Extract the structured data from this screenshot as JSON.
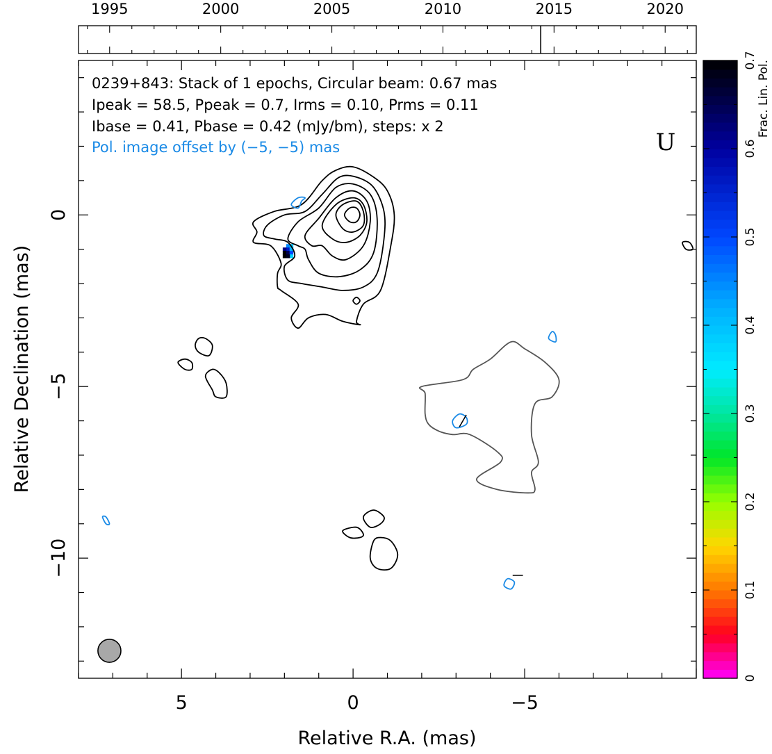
{
  "chart_data": {
    "type": "contour",
    "title_lines": [
      "0239+843: Stack of 1 epochs, Circular beam: 0.67 mas",
      "Ipeak = 58.5, Ppeak = 0.7, Irms = 0.10, Prms = 0.11",
      "Ibase = 0.41, Pbase = 0.42 (mJy/bm), steps: x 2"
    ],
    "offset_note": "Pol. image offset by (−5, −5) mas",
    "band_label": "U",
    "xlabel": "Relative R.A. (mas)",
    "ylabel": "Relative Declination (mas)",
    "xlim": [
      8,
      -10
    ],
    "ylim": [
      -13.5,
      4.5
    ],
    "x_ticks": [
      5,
      0,
      -5
    ],
    "x_tick_labels": [
      "5",
      "0",
      "−5"
    ],
    "y_ticks": [
      0,
      -5,
      -10
    ],
    "y_tick_labels": [
      "0",
      "−5",
      "−10"
    ],
    "timeline": {
      "xlim": [
        1993.6,
        2021.4
      ],
      "tick_years": [
        1995,
        2000,
        2005,
        2010,
        2015,
        2020
      ],
      "tick_labels": [
        "1995",
        "2000",
        "2005",
        "2010",
        "2015",
        "2020"
      ],
      "epochs": [
        2014.4
      ]
    },
    "colorbar": {
      "label": "Frac. Lin. Pol.",
      "range": [
        0,
        0.7
      ],
      "ticks": [
        0,
        0.1,
        0.2,
        0.3,
        0.4,
        0.5,
        0.6,
        0.7
      ],
      "tick_labels": [
        "0",
        "0.1",
        "0.2",
        "0.3",
        "0.4",
        "0.5",
        "0.6",
        "0.7"
      ]
    },
    "beam": {
      "x": 7.1,
      "y": -12.7,
      "diameter_mas": 0.67
    },
    "colors": {
      "total_intensity": "#000000",
      "negative_intensity": "#555555",
      "polarization": "#1a8ae6",
      "beam_fill": "#a8a8a8"
    },
    "stokes_i_contours": [
      {
        "level": 1,
        "points": [
          [
            2.9,
            -0.8
          ],
          [
            2.8,
            -0.5
          ],
          [
            2.9,
            -0.2
          ],
          [
            2.3,
            0.1
          ],
          [
            1.5,
            0.3
          ],
          [
            0.9,
            1.0
          ],
          [
            0.5,
            1.3
          ],
          [
            0.0,
            1.4
          ],
          [
            -0.6,
            1.1
          ],
          [
            -1.0,
            0.7
          ],
          [
            -1.2,
            0.0
          ],
          [
            -1.1,
            -0.9
          ],
          [
            -0.8,
            -2.2
          ],
          [
            -0.3,
            -2.6
          ],
          [
            -0.1,
            -3.1
          ],
          [
            -0.2,
            -3.2
          ],
          [
            0.3,
            -3.1
          ],
          [
            0.8,
            -2.9
          ],
          [
            1.3,
            -3.0
          ],
          [
            1.6,
            -3.3
          ],
          [
            1.8,
            -3.0
          ],
          [
            1.6,
            -2.6
          ],
          [
            2.1,
            -2.2
          ],
          [
            2.2,
            -2.1
          ],
          [
            2.2,
            -1.7
          ],
          [
            2.1,
            -1.4
          ],
          [
            2.4,
            -0.9
          ]
        ]
      },
      {
        "level": 2,
        "points": [
          [
            2.6,
            -0.6
          ],
          [
            2.5,
            -0.3
          ],
          [
            2.0,
            0.0
          ],
          [
            1.4,
            0.1
          ],
          [
            0.9,
            0.6
          ],
          [
            0.4,
            1.1
          ],
          [
            -0.1,
            1.1
          ],
          [
            -0.6,
            0.8
          ],
          [
            -0.9,
            0.1
          ],
          [
            -0.9,
            -0.7
          ],
          [
            -0.7,
            -1.7
          ],
          [
            -0.3,
            -2.1
          ],
          [
            0.3,
            -2.2
          ],
          [
            0.9,
            -2.1
          ],
          [
            1.5,
            -2.0
          ],
          [
            1.9,
            -1.9
          ],
          [
            2.0,
            -1.5
          ],
          [
            1.7,
            -1.2
          ],
          [
            1.9,
            -0.8
          ],
          [
            2.3,
            -0.7
          ]
        ]
      },
      {
        "level": 4,
        "points": [
          [
            1.9,
            -0.7
          ],
          [
            1.6,
            -0.2
          ],
          [
            1.0,
            0.2
          ],
          [
            0.5,
            0.8
          ],
          [
            0.0,
            0.9
          ],
          [
            -0.5,
            0.6
          ],
          [
            -0.7,
            -0.1
          ],
          [
            -0.6,
            -1.1
          ],
          [
            -0.2,
            -1.6
          ],
          [
            0.4,
            -1.8
          ],
          [
            1.0,
            -1.7
          ],
          [
            1.3,
            -1.3
          ],
          [
            1.4,
            -1.0
          ],
          [
            1.6,
            -0.9
          ]
        ]
      },
      {
        "level": 8,
        "points": [
          [
            1.4,
            -0.6
          ],
          [
            1.0,
            -0.1
          ],
          [
            0.5,
            0.5
          ],
          [
            0.0,
            0.7
          ],
          [
            -0.4,
            0.4
          ],
          [
            -0.5,
            -0.2
          ],
          [
            -0.3,
            -0.9
          ],
          [
            0.2,
            -1.3
          ],
          [
            0.6,
            -1.2
          ],
          [
            0.9,
            -0.9
          ],
          [
            1.2,
            -0.9
          ]
        ]
      },
      {
        "level": 16,
        "points": [
          [
            0.9,
            -0.3
          ],
          [
            0.5,
            0.3
          ],
          [
            0.0,
            0.5
          ],
          [
            -0.3,
            0.3
          ],
          [
            -0.4,
            -0.2
          ],
          [
            -0.2,
            -0.6
          ],
          [
            0.2,
            -0.8
          ],
          [
            0.6,
            -0.7
          ]
        ]
      },
      {
        "level": 32,
        "points": [
          [
            0.5,
            0.0
          ],
          [
            0.3,
            0.3
          ],
          [
            -0.1,
            0.4
          ],
          [
            -0.3,
            0.1
          ],
          [
            -0.3,
            -0.3
          ],
          [
            0.0,
            -0.5
          ],
          [
            0.3,
            -0.4
          ]
        ]
      },
      {
        "level": 64,
        "points": [
          [
            0.25,
            0.0
          ],
          [
            0.1,
            0.2
          ],
          [
            -0.1,
            0.2
          ],
          [
            -0.2,
            0.0
          ],
          [
            -0.1,
            -0.2
          ],
          [
            0.1,
            -0.2
          ]
        ]
      },
      {
        "level": 1,
        "points": [
          [
            -0.1,
            -2.4
          ],
          [
            -0.2,
            -2.5
          ],
          [
            -0.1,
            -2.6
          ],
          [
            0.0,
            -2.5
          ]
        ]
      },
      {
        "level": 1,
        "points": [
          [
            4.6,
            -3.8
          ],
          [
            4.5,
            -4.0
          ],
          [
            4.2,
            -4.1
          ],
          [
            4.1,
            -3.8
          ],
          [
            4.3,
            -3.6
          ],
          [
            4.5,
            -3.6
          ]
        ]
      },
      {
        "level": 1,
        "points": [
          [
            5.1,
            -4.3
          ],
          [
            4.9,
            -4.5
          ],
          [
            4.7,
            -4.5
          ],
          [
            4.7,
            -4.3
          ],
          [
            4.9,
            -4.2
          ]
        ]
      },
      {
        "level": 1,
        "points": [
          [
            4.3,
            -4.7
          ],
          [
            4.1,
            -5.1
          ],
          [
            4.0,
            -5.3
          ],
          [
            3.7,
            -5.3
          ],
          [
            3.7,
            -4.9
          ],
          [
            3.9,
            -4.6
          ],
          [
            4.1,
            -4.5
          ]
        ]
      },
      {
        "level": 1,
        "points": [
          [
            -0.3,
            -8.8
          ],
          [
            -0.6,
            -8.6
          ],
          [
            -0.9,
            -8.8
          ],
          [
            -0.8,
            -9.0
          ],
          [
            -0.5,
            -9.1
          ]
        ]
      },
      {
        "level": 1,
        "points": [
          [
            0.3,
            -9.2
          ],
          [
            0.1,
            -9.4
          ],
          [
            -0.2,
            -9.4
          ],
          [
            -0.3,
            -9.3
          ],
          [
            -0.1,
            -9.1
          ]
        ]
      },
      {
        "level": 1,
        "points": [
          [
            -0.6,
            -9.5
          ],
          [
            -0.5,
            -10.0
          ],
          [
            -0.7,
            -10.3
          ],
          [
            -1.1,
            -10.3
          ],
          [
            -1.3,
            -9.9
          ],
          [
            -1.1,
            -9.5
          ],
          [
            -0.8,
            -9.4
          ]
        ]
      },
      {
        "level": 1,
        "points": [
          [
            -9.6,
            -0.8
          ],
          [
            -9.7,
            -1.0
          ],
          [
            -9.9,
            -1.0
          ],
          [
            -9.8,
            -0.8
          ]
        ]
      }
    ],
    "stokes_i_negative_contours": [
      {
        "level": -1,
        "points": [
          [
            -2.0,
            -5.0
          ],
          [
            -3.2,
            -4.8
          ],
          [
            -3.5,
            -4.5
          ],
          [
            -4.0,
            -4.2
          ],
          [
            -4.6,
            -3.7
          ],
          [
            -5.0,
            -3.9
          ],
          [
            -5.6,
            -4.3
          ],
          [
            -6.0,
            -4.8
          ],
          [
            -5.8,
            -5.3
          ],
          [
            -5.3,
            -5.5
          ],
          [
            -5.2,
            -6.4
          ],
          [
            -5.4,
            -7.2
          ],
          [
            -5.2,
            -7.5
          ],
          [
            -5.3,
            -8.0
          ],
          [
            -5.1,
            -8.1
          ],
          [
            -4.2,
            -8.0
          ],
          [
            -3.6,
            -7.7
          ],
          [
            -4.3,
            -7.2
          ],
          [
            -4.2,
            -6.9
          ],
          [
            -3.4,
            -6.4
          ],
          [
            -2.9,
            -6.4
          ],
          [
            -2.5,
            -6.3
          ],
          [
            -2.2,
            -6.1
          ],
          [
            -2.1,
            -5.8
          ],
          [
            -2.1,
            -5.2
          ]
        ]
      }
    ],
    "polarization_contours": [
      {
        "points": [
          [
            1.5,
            0.4
          ],
          [
            1.4,
            0.5
          ],
          [
            1.6,
            0.5
          ],
          [
            1.8,
            0.3
          ],
          [
            1.6,
            0.2
          ]
        ]
      },
      {
        "points": [
          [
            -3.1,
            -5.8
          ],
          [
            -2.9,
            -6.0
          ],
          [
            -3.0,
            -6.2
          ],
          [
            -3.3,
            -6.1
          ],
          [
            -3.3,
            -5.9
          ]
        ]
      },
      {
        "points": [
          [
            -5.8,
            -3.4
          ],
          [
            -5.7,
            -3.6
          ],
          [
            -5.9,
            -3.7
          ],
          [
            -5.9,
            -3.5
          ]
        ]
      },
      {
        "points": [
          [
            7.3,
            -8.8
          ],
          [
            7.2,
            -9.0
          ],
          [
            7.1,
            -9.0
          ],
          [
            7.2,
            -8.8
          ]
        ]
      },
      {
        "points": [
          [
            -4.5,
            -10.6
          ],
          [
            -4.4,
            -10.8
          ],
          [
            -4.6,
            -10.9
          ],
          [
            -4.7,
            -10.7
          ]
        ]
      }
    ],
    "evpa_ticks": [
      {
        "x": -3.2,
        "y": -6.0,
        "angle_deg": 60,
        "length": 0.4
      },
      {
        "x": -4.8,
        "y": -10.5,
        "angle_deg": 0,
        "length": 0.3
      }
    ],
    "frac_pol_pixels": [
      {
        "x": 1.9,
        "y": -0.9,
        "v": 0.45
      },
      {
        "x": 1.8,
        "y": -0.9,
        "v": 0.4
      },
      {
        "x": 1.9,
        "y": -1.0,
        "v": 0.56
      },
      {
        "x": 1.8,
        "y": -1.0,
        "v": 0.42
      },
      {
        "x": 2.0,
        "y": -1.0,
        "v": 0.62
      },
      {
        "x": 2.0,
        "y": -1.1,
        "v": 0.7
      },
      {
        "x": 1.9,
        "y": -1.1,
        "v": 0.65
      },
      {
        "x": 1.8,
        "y": -1.1,
        "v": 0.5
      },
      {
        "x": 1.8,
        "y": -1.2,
        "v": 0.38
      },
      {
        "x": 2.0,
        "y": -1.2,
        "v": 0.7
      },
      {
        "x": 1.9,
        "y": -1.2,
        "v": 0.68
      }
    ]
  }
}
